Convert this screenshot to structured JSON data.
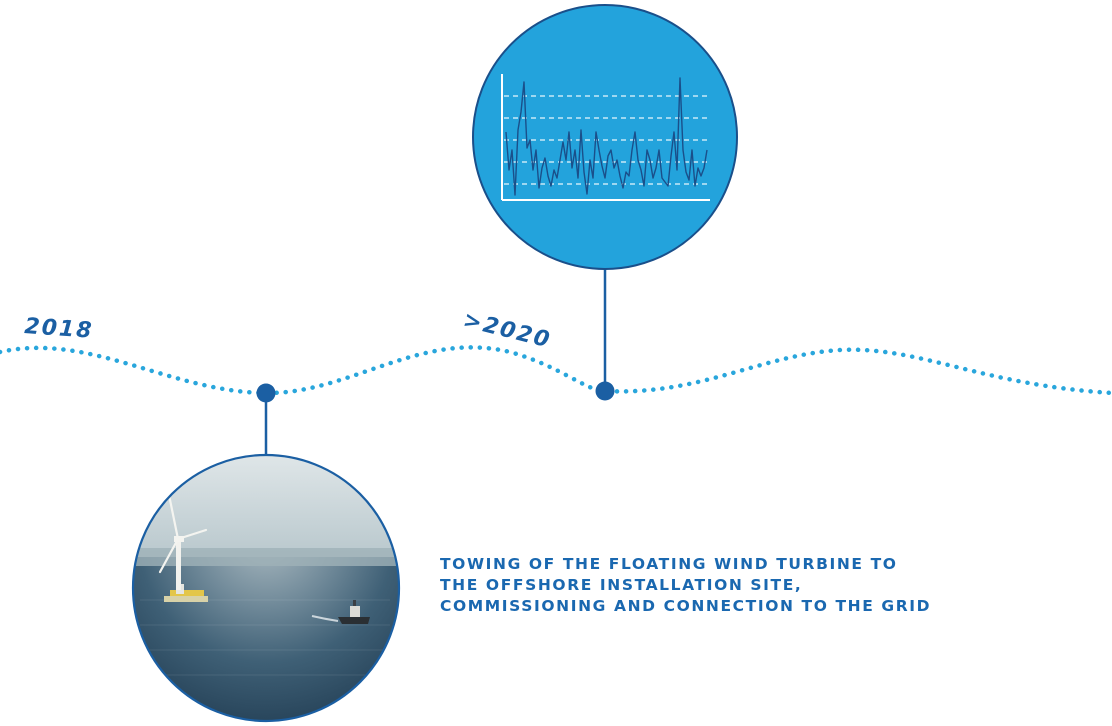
{
  "timeline": {
    "milestones": [
      {
        "year": "2018"
      },
      {
        "year": ">2020"
      }
    ]
  },
  "description": {
    "lines": [
      "TOWING OF THE FLOATING WIND TURBINE TO",
      "THE OFFSHORE INSTALLATION SITE,",
      "COMMISSIONING AND CONNECTION TO THE GRID"
    ]
  },
  "colors": {
    "timeline_dots": "#29a6dc",
    "node_blue": "#1b5fa3",
    "chart_circle_fill": "#23a3dc",
    "chart_circle_stroke": "#1a4f8a",
    "text_blue": "#1a68b0",
    "sea_dark": "#25445a",
    "sky_light": "#c9d6da"
  },
  "icons": [
    "line-chart-icon",
    "wind-turbine-photo"
  ]
}
